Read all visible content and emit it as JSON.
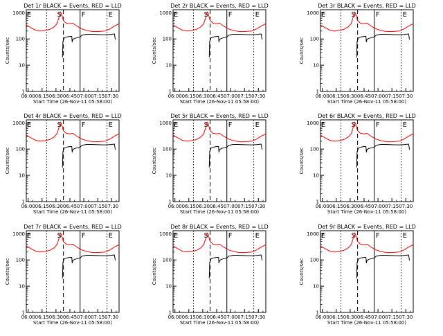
{
  "chart_data": [
    {
      "type": "line",
      "title": "Det 1r BLACK = Events, RED = LLD",
      "flags": [
        "E",
        "S",
        "F",
        "E"
      ]
    },
    {
      "type": "line",
      "title": "Det 2r BLACK = Events, RED = LLD",
      "flags": [
        "E",
        "S",
        "F",
        "E"
      ]
    },
    {
      "type": "line",
      "title": "Det 3r BLACK = Events, RED = LLD",
      "flags": [
        "E",
        "S",
        "F",
        "E"
      ]
    },
    {
      "type": "line",
      "title": "Det 4r BLACK = Events, RED = LLD",
      "flags": [
        "E",
        "S",
        "F",
        "E"
      ]
    },
    {
      "type": "line",
      "title": "Det 5r BLACK = Events, RED = LLD",
      "flags": [
        "E",
        "S",
        "F",
        "E"
      ]
    },
    {
      "type": "line",
      "title": "Det 6r BLACK = Events, RED = LLD",
      "flags": [
        "E",
        "S",
        "F",
        "E"
      ]
    },
    {
      "type": "line",
      "title": "Det 7r BLACK = Events, RED = LLD",
      "flags": [
        "E",
        "S",
        "F",
        "E"
      ]
    },
    {
      "type": "line",
      "title": "Det 8r BLACK = Events, RED = LLD",
      "flags": [
        "E",
        "S",
        "F",
        "E"
      ]
    },
    {
      "type": "line",
      "title": "Det 9r BLACK = Events, RED = LLD",
      "flags": [
        "E",
        "S",
        "F",
        "E"
      ]
    }
  ],
  "shared": {
    "xlabel": "Start Time (26-Nov-11 05:58:00)",
    "ylabel": "Counts/sec",
    "xticks": [
      "06:00",
      "06:15",
      "06:30",
      "06:45",
      "07:00",
      "07:15",
      "07:30"
    ],
    "yticks": [
      "1",
      "10",
      "100",
      "1000"
    ],
    "xlim_minutes": [
      0,
      100
    ],
    "ylim": [
      1,
      1300
    ],
    "yscale": "log",
    "flag_lines": [
      {
        "minute": 22,
        "style": "dotted"
      },
      {
        "minute": 40,
        "style": "dashed"
      },
      {
        "minute": 58,
        "style": "solid"
      },
      {
        "minute": 87,
        "style": "dotted"
      }
    ],
    "events_start_minute": 39,
    "colors": {
      "lld": "#ff0000",
      "events": "#000000"
    },
    "lld_curve": [
      [
        0,
        340
      ],
      [
        5,
        270
      ],
      [
        10,
        215
      ],
      [
        15,
        200
      ],
      [
        20,
        210
      ],
      [
        25,
        230
      ],
      [
        30,
        290
      ],
      [
        33,
        380
      ],
      [
        35,
        620
      ],
      [
        36,
        900
      ],
      [
        37,
        1050
      ],
      [
        38,
        900
      ],
      [
        40,
        500
      ],
      [
        43,
        400
      ],
      [
        47,
        380
      ],
      [
        50,
        400
      ],
      [
        55,
        300
      ],
      [
        60,
        240
      ],
      [
        65,
        210
      ],
      [
        70,
        195
      ],
      [
        75,
        190
      ],
      [
        80,
        195
      ],
      [
        85,
        200
      ],
      [
        90,
        240
      ],
      [
        95,
        310
      ],
      [
        100,
        380
      ]
    ],
    "events_curve": [
      [
        39,
        20
      ],
      [
        39.5,
        80
      ],
      [
        41,
        110
      ],
      [
        44,
        120
      ],
      [
        47,
        125
      ],
      [
        49,
        125
      ],
      [
        49.5,
        75
      ],
      [
        50,
        95
      ],
      [
        52,
        105
      ],
      [
        55,
        112
      ],
      [
        58,
        118
      ],
      [
        60,
        140
      ],
      [
        65,
        150
      ],
      [
        70,
        150
      ],
      [
        75,
        148
      ],
      [
        80,
        146
      ],
      [
        85,
        145
      ],
      [
        90,
        148
      ],
      [
        95,
        155
      ],
      [
        96,
        95
      ]
    ]
  }
}
